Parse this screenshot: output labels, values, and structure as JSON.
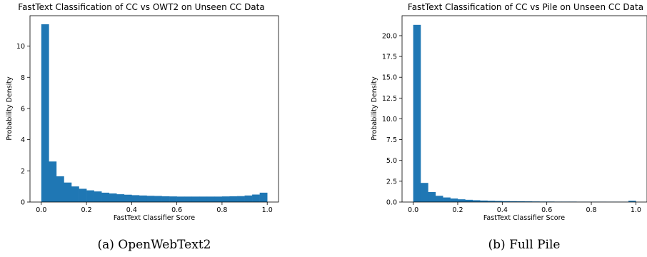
{
  "chart_data": [
    {
      "type": "bar",
      "subtype": "histogram",
      "title": "FastText Classification of CC vs OWT2 on Unseen CC Data",
      "xlabel": "FastText Classifier Score",
      "ylabel": "Probability Density",
      "caption": "(a) OpenWebText2",
      "xlim": [
        -0.05,
        1.05
      ],
      "ylim": [
        0,
        11.95
      ],
      "xticks": [
        0.0,
        0.2,
        0.4,
        0.6,
        0.8,
        1.0
      ],
      "xtick_labels": [
        "0.0",
        "0.2",
        "0.4",
        "0.6",
        "0.8",
        "1.0"
      ],
      "yticks": [
        0,
        2,
        4,
        6,
        8,
        10
      ],
      "ytick_labels": [
        "0",
        "2",
        "4",
        "6",
        "8",
        "10"
      ],
      "bin_width": 0.0333,
      "x": [
        0.0,
        0.0333,
        0.0667,
        0.1,
        0.1333,
        0.1667,
        0.2,
        0.2333,
        0.2667,
        0.3,
        0.3333,
        0.3667,
        0.4,
        0.4333,
        0.4667,
        0.5,
        0.5333,
        0.5667,
        0.6,
        0.6333,
        0.6667,
        0.7,
        0.7333,
        0.7667,
        0.8,
        0.8333,
        0.8667,
        0.9,
        0.9333,
        0.9667
      ],
      "values": [
        11.4,
        2.6,
        1.65,
        1.25,
        1.0,
        0.85,
        0.75,
        0.68,
        0.6,
        0.55,
        0.5,
        0.47,
        0.44,
        0.42,
        0.4,
        0.39,
        0.37,
        0.36,
        0.35,
        0.35,
        0.35,
        0.35,
        0.35,
        0.35,
        0.36,
        0.37,
        0.38,
        0.42,
        0.48,
        0.6
      ],
      "color": "#1f77b4"
    },
    {
      "type": "bar",
      "subtype": "histogram",
      "title": "FastText Classification of CC vs Pile on Unseen CC Data",
      "xlabel": "FastText Classifier Score",
      "ylabel": "Probability Density",
      "caption": "(b) Full Pile",
      "xlim": [
        -0.05,
        1.05
      ],
      "ylim": [
        0,
        22.4
      ],
      "xticks": [
        0.0,
        0.2,
        0.4,
        0.6,
        0.8,
        1.0
      ],
      "xtick_labels": [
        "0.0",
        "0.2",
        "0.4",
        "0.6",
        "0.8",
        "1.0"
      ],
      "yticks": [
        0,
        2.5,
        5,
        7.5,
        10,
        12.5,
        15,
        17.5,
        20
      ],
      "ytick_labels": [
        "0.0",
        "2.5",
        "5.0",
        "7.5",
        "10.0",
        "12.5",
        "15.0",
        "17.5",
        "20.0"
      ],
      "bin_width": 0.0333,
      "x": [
        0.0,
        0.0333,
        0.0667,
        0.1,
        0.1333,
        0.1667,
        0.2,
        0.2333,
        0.2667,
        0.3,
        0.3333,
        0.3667,
        0.4,
        0.4333,
        0.4667,
        0.5,
        0.5333,
        0.5667,
        0.6,
        0.6333,
        0.6667,
        0.7,
        0.7333,
        0.7667,
        0.8,
        0.8333,
        0.8667,
        0.9,
        0.9333,
        0.9667
      ],
      "values": [
        21.3,
        2.3,
        1.2,
        0.75,
        0.55,
        0.42,
        0.33,
        0.27,
        0.22,
        0.18,
        0.15,
        0.13,
        0.11,
        0.1,
        0.09,
        0.08,
        0.07,
        0.06,
        0.06,
        0.05,
        0.05,
        0.05,
        0.04,
        0.04,
        0.04,
        0.04,
        0.03,
        0.03,
        0.03,
        0.15
      ],
      "color": "#1f77b4"
    }
  ]
}
